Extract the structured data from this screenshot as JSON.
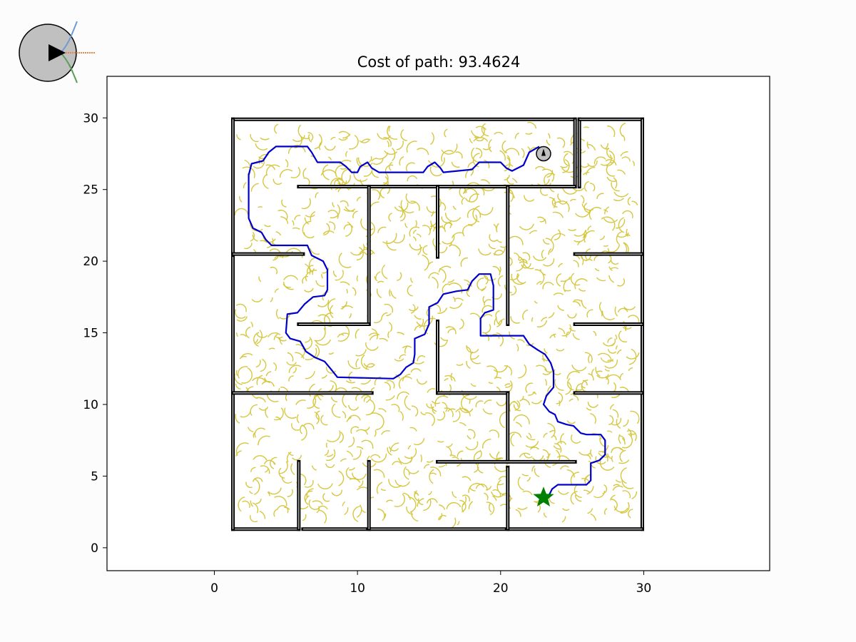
{
  "chart_data": {
    "type": "scatter",
    "title": "Cost of path: 93.4624",
    "xlabel": "",
    "ylabel": "",
    "xlim": [
      -7.5,
      38.8
    ],
    "ylim": [
      -1.6,
      32.9
    ],
    "xticks": [
      0,
      10,
      20,
      30
    ],
    "yticks": [
      0,
      5,
      10,
      15,
      20,
      25,
      30
    ],
    "grid": false,
    "colors": {
      "walls": "#000000",
      "tree": "#c8b400",
      "path": "#0000cc",
      "goal": "#008000",
      "robot_fill": "#c0c0c0",
      "axes": "#000000",
      "icon_orange": "#e8864a",
      "icon_blue": "#6f9ccf",
      "icon_green": "#5a9e5a"
    },
    "goal": {
      "marker": "star",
      "x": 23.0,
      "y": 3.5
    },
    "robot": {
      "marker": "circle",
      "x": 23.0,
      "y": 27.5,
      "heading": "up"
    },
    "walls": [
      [
        [
          1.3,
          29.9
        ],
        [
          25.2,
          29.9
        ]
      ],
      [
        [
          25.2,
          29.9
        ],
        [
          25.2,
          25.2
        ]
      ],
      [
        [
          25.2,
          25.2
        ],
        [
          5.9,
          25.2
        ]
      ],
      [
        [
          25.5,
          25.2
        ],
        [
          25.5,
          29.9
        ]
      ],
      [
        [
          25.5,
          29.9
        ],
        [
          29.9,
          29.9
        ]
      ],
      [
        [
          29.9,
          29.9
        ],
        [
          29.9,
          1.3
        ]
      ],
      [
        [
          29.9,
          1.3
        ],
        [
          20.6,
          1.3
        ]
      ],
      [
        [
          20.3,
          1.3
        ],
        [
          10.9,
          1.3
        ]
      ],
      [
        [
          10.6,
          1.3
        ],
        [
          6.2,
          1.3
        ]
      ],
      [
        [
          5.9,
          1.3
        ],
        [
          1.3,
          1.3
        ]
      ],
      [
        [
          1.3,
          1.3
        ],
        [
          1.3,
          10.7
        ]
      ],
      [
        [
          1.3,
          10.9
        ],
        [
          1.3,
          20.3
        ]
      ],
      [
        [
          1.3,
          20.6
        ],
        [
          1.3,
          29.9
        ]
      ],
      [
        [
          1.3,
          20.5
        ],
        [
          6.2,
          20.5
        ]
      ],
      [
        [
          1.3,
          10.8
        ],
        [
          11.0,
          10.8
        ]
      ],
      [
        [
          10.8,
          25.2
        ],
        [
          10.8,
          15.6
        ]
      ],
      [
        [
          10.8,
          15.6
        ],
        [
          5.9,
          15.6
        ]
      ],
      [
        [
          15.6,
          25.2
        ],
        [
          15.6,
          20.3
        ]
      ],
      [
        [
          20.5,
          25.2
        ],
        [
          20.5,
          15.6
        ]
      ],
      [
        [
          25.2,
          20.5
        ],
        [
          29.9,
          20.5
        ]
      ],
      [
        [
          25.2,
          15.6
        ],
        [
          29.9,
          15.6
        ]
      ],
      [
        [
          25.2,
          10.8
        ],
        [
          29.9,
          10.8
        ]
      ],
      [
        [
          15.6,
          15.8
        ],
        [
          15.6,
          10.8
        ]
      ],
      [
        [
          15.6,
          10.8
        ],
        [
          20.5,
          10.8
        ]
      ],
      [
        [
          20.5,
          10.8
        ],
        [
          20.5,
          6.0
        ]
      ],
      [
        [
          15.6,
          6.0
        ],
        [
          25.2,
          6.0
        ]
      ],
      [
        [
          20.5,
          5.6
        ],
        [
          20.5,
          1.3
        ]
      ],
      [
        [
          5.9,
          6.0
        ],
        [
          5.9,
          1.3
        ]
      ],
      [
        [
          10.8,
          6.0
        ],
        [
          10.8,
          1.3
        ]
      ]
    ],
    "path": [
      [
        22.7,
        28.0
      ],
      [
        22.0,
        27.6
      ],
      [
        21.6,
        26.7
      ],
      [
        20.8,
        26.3
      ],
      [
        20.4,
        26.5
      ],
      [
        20.0,
        26.9
      ],
      [
        18.5,
        26.9
      ],
      [
        18.0,
        26.4
      ],
      [
        16.0,
        26.2
      ],
      [
        15.8,
        26.5
      ],
      [
        15.4,
        26.9
      ],
      [
        14.9,
        26.6
      ],
      [
        14.6,
        26.2
      ],
      [
        13.0,
        26.2
      ],
      [
        11.5,
        26.2
      ],
      [
        11.0,
        26.5
      ],
      [
        10.7,
        26.9
      ],
      [
        10.2,
        26.6
      ],
      [
        10.0,
        26.2
      ],
      [
        9.6,
        26.2
      ],
      [
        9.2,
        26.6
      ],
      [
        8.8,
        26.9
      ],
      [
        7.2,
        26.9
      ],
      [
        6.8,
        27.6
      ],
      [
        6.5,
        28.0
      ],
      [
        4.3,
        28.0
      ],
      [
        3.8,
        27.6
      ],
      [
        3.4,
        27.0
      ],
      [
        2.6,
        26.8
      ],
      [
        2.4,
        26.0
      ],
      [
        2.4,
        23.0
      ],
      [
        2.7,
        22.3
      ],
      [
        3.3,
        22.0
      ],
      [
        3.6,
        21.5
      ],
      [
        4.0,
        21.1
      ],
      [
        6.5,
        21.1
      ],
      [
        6.8,
        20.4
      ],
      [
        7.6,
        20.0
      ],
      [
        7.9,
        19.4
      ],
      [
        7.9,
        18.0
      ],
      [
        7.7,
        17.6
      ],
      [
        6.9,
        17.5
      ],
      [
        6.3,
        17.0
      ],
      [
        5.8,
        16.4
      ],
      [
        5.1,
        16.3
      ],
      [
        5.0,
        15.0
      ],
      [
        5.3,
        14.6
      ],
      [
        6.0,
        14.4
      ],
      [
        6.4,
        13.7
      ],
      [
        7.0,
        13.3
      ],
      [
        7.7,
        13.0
      ],
      [
        8.2,
        12.4
      ],
      [
        8.6,
        11.9
      ],
      [
        12.5,
        11.8
      ],
      [
        13.0,
        12.1
      ],
      [
        13.4,
        12.6
      ],
      [
        13.9,
        12.9
      ],
      [
        14.0,
        13.5
      ],
      [
        14.0,
        14.6
      ],
      [
        14.7,
        14.9
      ],
      [
        15.0,
        15.6
      ],
      [
        15.0,
        16.8
      ],
      [
        15.6,
        17.1
      ],
      [
        16.0,
        17.7
      ],
      [
        16.9,
        17.9
      ],
      [
        17.7,
        18.0
      ],
      [
        18.0,
        18.6
      ],
      [
        18.5,
        19.1
      ],
      [
        19.3,
        19.1
      ],
      [
        19.5,
        18.3
      ],
      [
        19.5,
        16.6
      ],
      [
        18.9,
        16.4
      ],
      [
        18.6,
        16.0
      ],
      [
        18.6,
        14.8
      ],
      [
        21.6,
        14.8
      ],
      [
        22.0,
        14.2
      ],
      [
        22.6,
        13.8
      ],
      [
        23.1,
        13.5
      ],
      [
        23.5,
        12.9
      ],
      [
        23.7,
        12.3
      ],
      [
        23.7,
        11.2
      ],
      [
        23.2,
        10.6
      ],
      [
        23.0,
        10.0
      ],
      [
        23.4,
        9.5
      ],
      [
        23.8,
        9.3
      ],
      [
        24.0,
        8.8
      ],
      [
        24.6,
        8.6
      ],
      [
        25.1,
        8.5
      ],
      [
        25.6,
        8.0
      ],
      [
        26.0,
        7.9
      ],
      [
        27.0,
        7.9
      ],
      [
        27.3,
        7.5
      ],
      [
        27.3,
        6.5
      ],
      [
        26.9,
        6.1
      ],
      [
        26.3,
        5.9
      ],
      [
        26.3,
        4.7
      ],
      [
        26.0,
        4.4
      ],
      [
        24.0,
        4.4
      ],
      [
        23.6,
        4.1
      ],
      [
        23.4,
        3.7
      ]
    ]
  },
  "icon": {
    "name": "robot-pose-legend-icon"
  }
}
